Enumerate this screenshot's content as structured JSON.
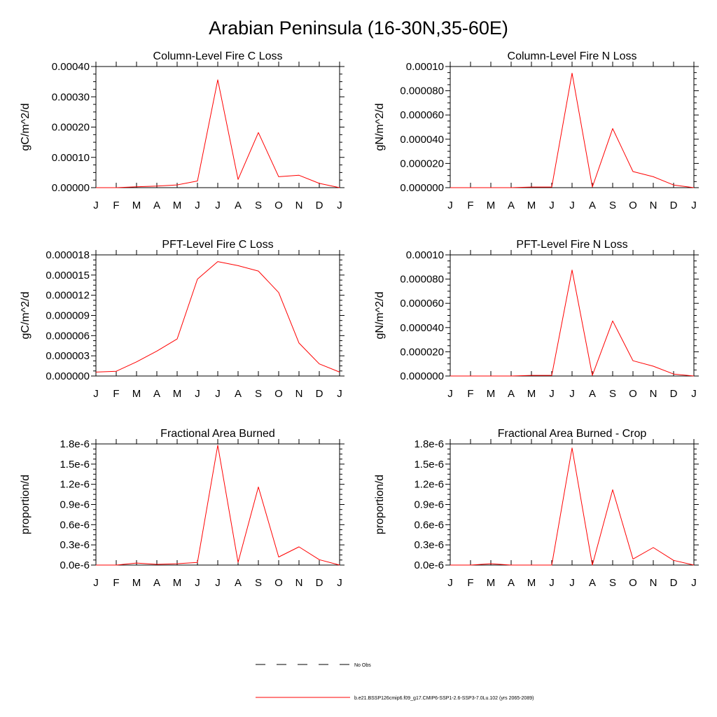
{
  "figure": {
    "title": "Arabian Peninsula (16-30N,35-60E)"
  },
  "legend": {
    "entries": [
      {
        "label": "No Obs",
        "style": "dashed",
        "color": "#000000"
      },
      {
        "label": "b.e21.BSSP126cmip6.f09_g17.CMIP6-SSP1-2.6-SSP3-7.0Lu.102 (yrs 2065-2089)",
        "style": "solid",
        "color": "#ff0000"
      }
    ]
  },
  "chart_data": [
    {
      "type": "line",
      "title": "Column-Level Fire C Loss",
      "xlabel": "",
      "ylabel": "gC/m^2/d",
      "categories": [
        "J",
        "F",
        "M",
        "A",
        "M",
        "J",
        "J",
        "A",
        "S",
        "O",
        "N",
        "D",
        "J"
      ],
      "ylim": [
        0,
        0.0004
      ],
      "yticks": [
        0,
        0.0001,
        0.0002,
        0.0003,
        0.0004
      ],
      "ytick_labels": [
        "0.00000",
        "0.00010",
        "0.00020",
        "0.00030",
        "0.00040"
      ],
      "series": [
        {
          "color": "#ff0000",
          "values": [
            0.0,
            0.0,
            3e-06,
            5e-06,
            9e-06,
            2.2e-05,
            0.000356,
            2.7e-05,
            0.000182,
            3.6e-05,
            4.1e-05,
            1.4e-05,
            0.0
          ]
        }
      ]
    },
    {
      "type": "line",
      "title": "Column-Level Fire N Loss",
      "xlabel": "",
      "ylabel": "gN/m^2/d",
      "categories": [
        "J",
        "F",
        "M",
        "A",
        "M",
        "J",
        "J",
        "A",
        "S",
        "O",
        "N",
        "D",
        "J"
      ],
      "ylim": [
        0,
        0.0001
      ],
      "yticks": [
        0,
        2e-05,
        4e-05,
        6e-05,
        8e-05,
        0.0001
      ],
      "ytick_labels": [
        "0.000000",
        "0.000020",
        "0.000040",
        "0.000060",
        "0.000080",
        "0.00010"
      ],
      "series": [
        {
          "color": "#ff0000",
          "values": [
            0.0,
            0.0,
            0.0,
            0.0,
            5e-07,
            5e-07,
            9.45e-05,
            5e-07,
            4.88e-05,
            1.33e-05,
            9e-06,
            2.2e-06,
            0.0
          ]
        }
      ]
    },
    {
      "type": "line",
      "title": "PFT-Level Fire C Loss",
      "xlabel": "",
      "ylabel": "gC/m^2/d",
      "categories": [
        "J",
        "F",
        "M",
        "A",
        "M",
        "J",
        "J",
        "A",
        "S",
        "O",
        "N",
        "D",
        "J"
      ],
      "ylim": [
        0,
        1.8e-05
      ],
      "yticks": [
        0,
        3e-06,
        6e-06,
        9e-06,
        1.2e-05,
        1.5e-05,
        1.8e-05
      ],
      "ytick_labels": [
        "0.000000",
        "0.000003",
        "0.000006",
        "0.000009",
        "0.000012",
        "0.000015",
        "0.000018"
      ],
      "series": [
        {
          "color": "#ff0000",
          "values": [
            5.8e-07,
            7.1e-07,
            2.1e-06,
            3.7e-06,
            5.5e-06,
            1.44e-05,
            1.7e-05,
            1.64e-05,
            1.56e-05,
            1.24e-05,
            4.9e-06,
            1.8e-06,
            5.8e-07
          ]
        }
      ]
    },
    {
      "type": "line",
      "title": "PFT-Level Fire N Loss",
      "xlabel": "",
      "ylabel": "gN/m^2/d",
      "categories": [
        "J",
        "F",
        "M",
        "A",
        "M",
        "J",
        "J",
        "A",
        "S",
        "O",
        "N",
        "D",
        "J"
      ],
      "ylim": [
        0,
        0.0001
      ],
      "yticks": [
        0,
        2e-05,
        4e-05,
        6e-05,
        8e-05,
        0.0001
      ],
      "ytick_labels": [
        "0.000000",
        "0.000020",
        "0.000040",
        "0.000060",
        "0.000080",
        "0.00010"
      ],
      "series": [
        {
          "color": "#ff0000",
          "values": [
            0.0,
            0.0,
            0.0,
            0.0,
            5e-07,
            5e-07,
            8.75e-05,
            5e-07,
            4.55e-05,
            1.26e-05,
            8.1e-06,
            1.6e-06,
            0.0
          ]
        }
      ]
    },
    {
      "type": "line",
      "title": "Fractional Area Burned",
      "xlabel": "",
      "ylabel": "proportion/d",
      "categories": [
        "J",
        "F",
        "M",
        "A",
        "M",
        "J",
        "J",
        "A",
        "S",
        "O",
        "N",
        "D",
        "J"
      ],
      "ylim": [
        0,
        1.8e-06
      ],
      "yticks": [
        0,
        3e-07,
        6e-07,
        9e-07,
        1.2e-06,
        1.5e-06,
        1.8e-06
      ],
      "ytick_labels": [
        "0.0e-6",
        "0.3e-6",
        "0.6e-6",
        "0.9e-6",
        "1.2e-6",
        "1.5e-6",
        "1.8e-6"
      ],
      "series": [
        {
          "color": "#ff0000",
          "values": [
            0.0,
            0.0,
            3e-08,
            1e-08,
            2e-08,
            4e-08,
            1.78e-06,
            4e-08,
            1.16e-06,
            1.2e-07,
            2.7e-07,
            8e-08,
            0.0
          ]
        }
      ]
    },
    {
      "type": "line",
      "title": "Fractional Area Burned - Crop",
      "xlabel": "",
      "ylabel": "proportion/d",
      "categories": [
        "J",
        "F",
        "M",
        "A",
        "M",
        "J",
        "J",
        "A",
        "S",
        "O",
        "N",
        "D",
        "J"
      ],
      "ylim": [
        0,
        1.8e-06
      ],
      "yticks": [
        0,
        3e-07,
        6e-07,
        9e-07,
        1.2e-06,
        1.5e-06,
        1.8e-06
      ],
      "ytick_labels": [
        "0.0e-6",
        "0.3e-6",
        "0.6e-6",
        "0.9e-6",
        "1.2e-6",
        "1.5e-6",
        "1.8e-6"
      ],
      "series": [
        {
          "color": "#ff0000",
          "values": [
            0.0,
            0.0,
            2e-08,
            0.0,
            0.0,
            0.0,
            1.74e-06,
            0.0,
            1.12e-06,
            9e-08,
            2.6e-07,
            7e-08,
            0.0
          ]
        }
      ]
    }
  ]
}
